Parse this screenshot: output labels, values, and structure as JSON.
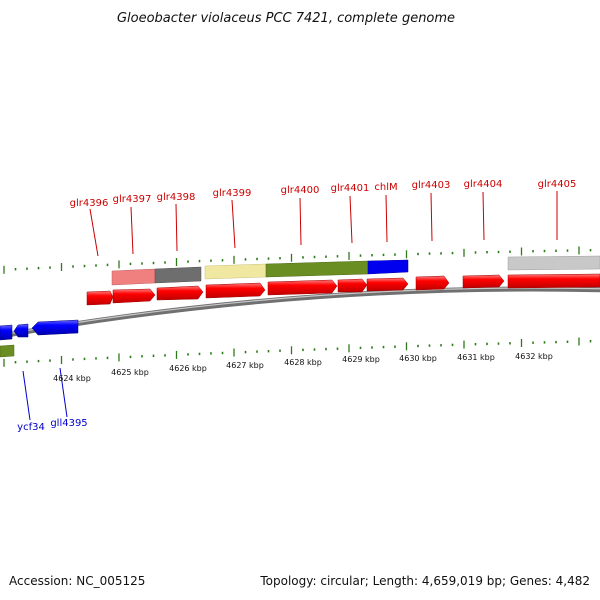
{
  "title": "Gloeobacter violaceus PCC 7421, complete genome",
  "footer": {
    "accession": "Accession: NC_005125",
    "topology": "Topology: circular; Length: 4,659,019 bp; Genes: 4,482"
  },
  "colors": {
    "forward_gene": "#ff0000",
    "reverse_gene": "#0000ff",
    "label_forward": "#cc0000",
    "label_reverse": "#0000cc",
    "tick": "#2f7a1c",
    "backbone": "#808080"
  },
  "kbp_ticks": [
    "4624 kbp",
    "4625 kbp",
    "4626 kbp",
    "4627 kbp",
    "4628 kbp",
    "4629 kbp",
    "4630 kbp",
    "4631 kbp",
    "4632 kbp"
  ],
  "forward_labels": [
    "glr4396",
    "glr4397",
    "glr4398",
    "glr4399",
    "glr4400",
    "glr4401",
    "chlM",
    "glr4403",
    "glr4404",
    "glr4405"
  ],
  "reverse_labels": [
    "ycf34",
    "gll4395"
  ],
  "cog_categories": [
    "light-red",
    "dark-grey",
    "pale-yellow",
    "olive-green",
    "olive-green",
    "blue",
    "light-grey",
    "olive-green"
  ]
}
